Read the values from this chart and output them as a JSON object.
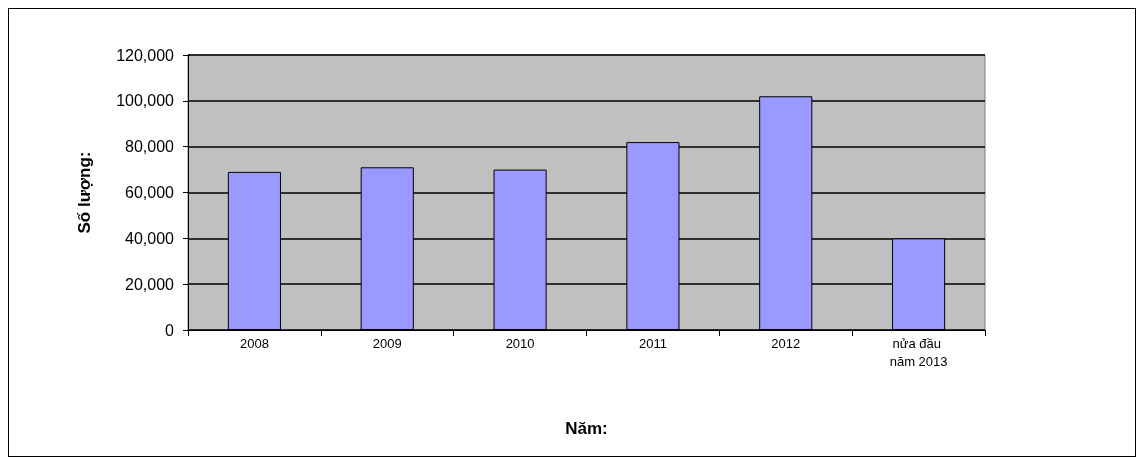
{
  "chart_data": {
    "type": "bar",
    "xlabel": "Năm:",
    "ylabel": "Số lượng:",
    "categories": [
      "2008",
      "2009",
      "2010",
      "2011",
      "2012",
      "nửa đầu năm 2013"
    ],
    "values": [
      69000,
      71000,
      70000,
      82000,
      102000,
      40000
    ],
    "color": "#9999ff",
    "ylim": [
      0,
      120000
    ],
    "yticks": [
      0,
      {
        "value": 20000,
        "label": "20,000"
      },
      {
        "value": 40000,
        "label": "40,000"
      },
      {
        "value": 60000,
        "label": "60,000"
      },
      {
        "value": 80000,
        "label": "80,000"
      },
      {
        "value": 100000,
        "label": "100,000"
      },
      {
        "value": 120000,
        "label": "120,000"
      }
    ],
    "grid": "y"
  }
}
